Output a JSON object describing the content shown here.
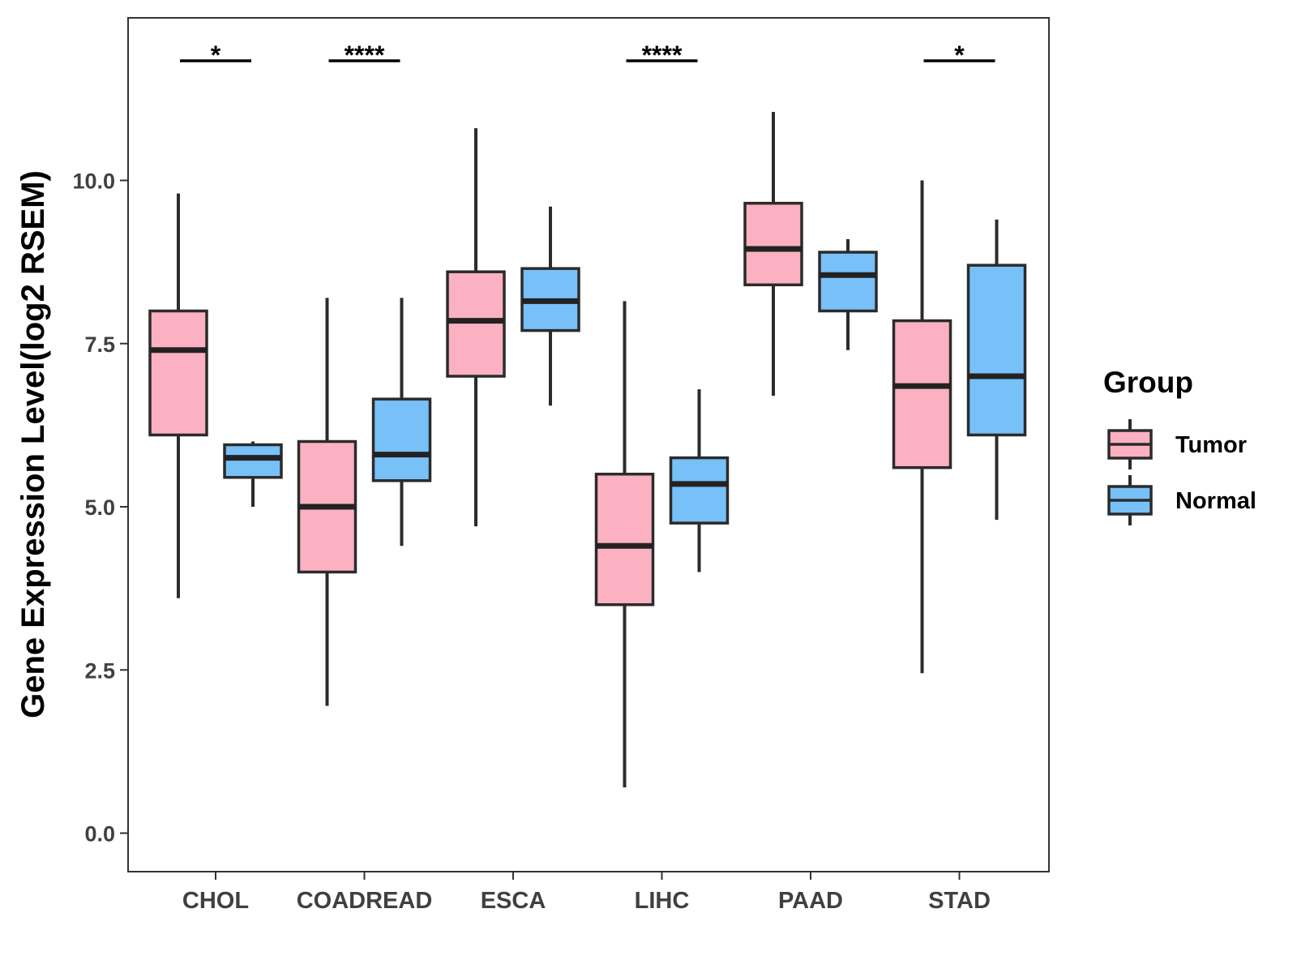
{
  "chart_data": {
    "type": "boxplot",
    "xlabel": "",
    "ylabel": "Gene Expression Level(log2 RSEM)",
    "ylim": [
      -0.6,
      12.5
    ],
    "yticks": [
      0.0,
      2.5,
      5.0,
      7.5,
      10.0
    ],
    "ytick_labels": [
      "0.0",
      "2.5",
      "5.0",
      "7.5",
      "10.0"
    ],
    "categories": [
      "CHOL",
      "COADREAD",
      "ESCA",
      "LIHC",
      "PAAD",
      "STAD"
    ],
    "legend": {
      "title": "Group",
      "position": "right",
      "entries": [
        {
          "name": "Tumor",
          "color": "#FBB1C2"
        },
        {
          "name": "Normal",
          "color": "#78C0F8"
        }
      ]
    },
    "series": [
      {
        "name": "Tumor",
        "color": "#FBB1C2",
        "boxes": [
          {
            "lower": 3.6,
            "q1": 6.1,
            "median": 7.4,
            "q3": 8.0,
            "upper": 9.8
          },
          {
            "lower": 1.95,
            "q1": 4.0,
            "median": 5.0,
            "q3": 6.0,
            "upper": 8.2
          },
          {
            "lower": 4.7,
            "q1": 7.0,
            "median": 7.85,
            "q3": 8.6,
            "upper": 10.8
          },
          {
            "lower": 0.7,
            "q1": 3.5,
            "median": 4.4,
            "q3": 5.5,
            "upper": 8.15
          },
          {
            "lower": 6.7,
            "q1": 8.4,
            "median": 8.95,
            "q3": 9.65,
            "upper": 11.05
          },
          {
            "lower": 2.45,
            "q1": 5.6,
            "median": 6.85,
            "q3": 7.85,
            "upper": 10.0
          }
        ]
      },
      {
        "name": "Normal",
        "color": "#78C0F8",
        "boxes": [
          {
            "lower": 5.0,
            "q1": 5.45,
            "median": 5.75,
            "q3": 5.95,
            "upper": 6.0
          },
          {
            "lower": 4.4,
            "q1": 5.4,
            "median": 5.8,
            "q3": 6.65,
            "upper": 8.2
          },
          {
            "lower": 6.55,
            "q1": 7.7,
            "median": 8.15,
            "q3": 8.65,
            "upper": 9.6
          },
          {
            "lower": 4.0,
            "q1": 4.75,
            "median": 5.35,
            "q3": 5.75,
            "upper": 6.8
          },
          {
            "lower": 7.4,
            "q1": 8.0,
            "median": 8.55,
            "q3": 8.9,
            "upper": 9.1
          },
          {
            "lower": 4.8,
            "q1": 6.1,
            "median": 7.0,
            "q3": 8.7,
            "upper": 9.4
          }
        ]
      }
    ],
    "significance": [
      {
        "category": "CHOL",
        "label": "*"
      },
      {
        "category": "COADREAD",
        "label": "****"
      },
      {
        "category": "LIHC",
        "label": "****"
      },
      {
        "category": "STAD",
        "label": "*"
      }
    ],
    "grid": false
  }
}
